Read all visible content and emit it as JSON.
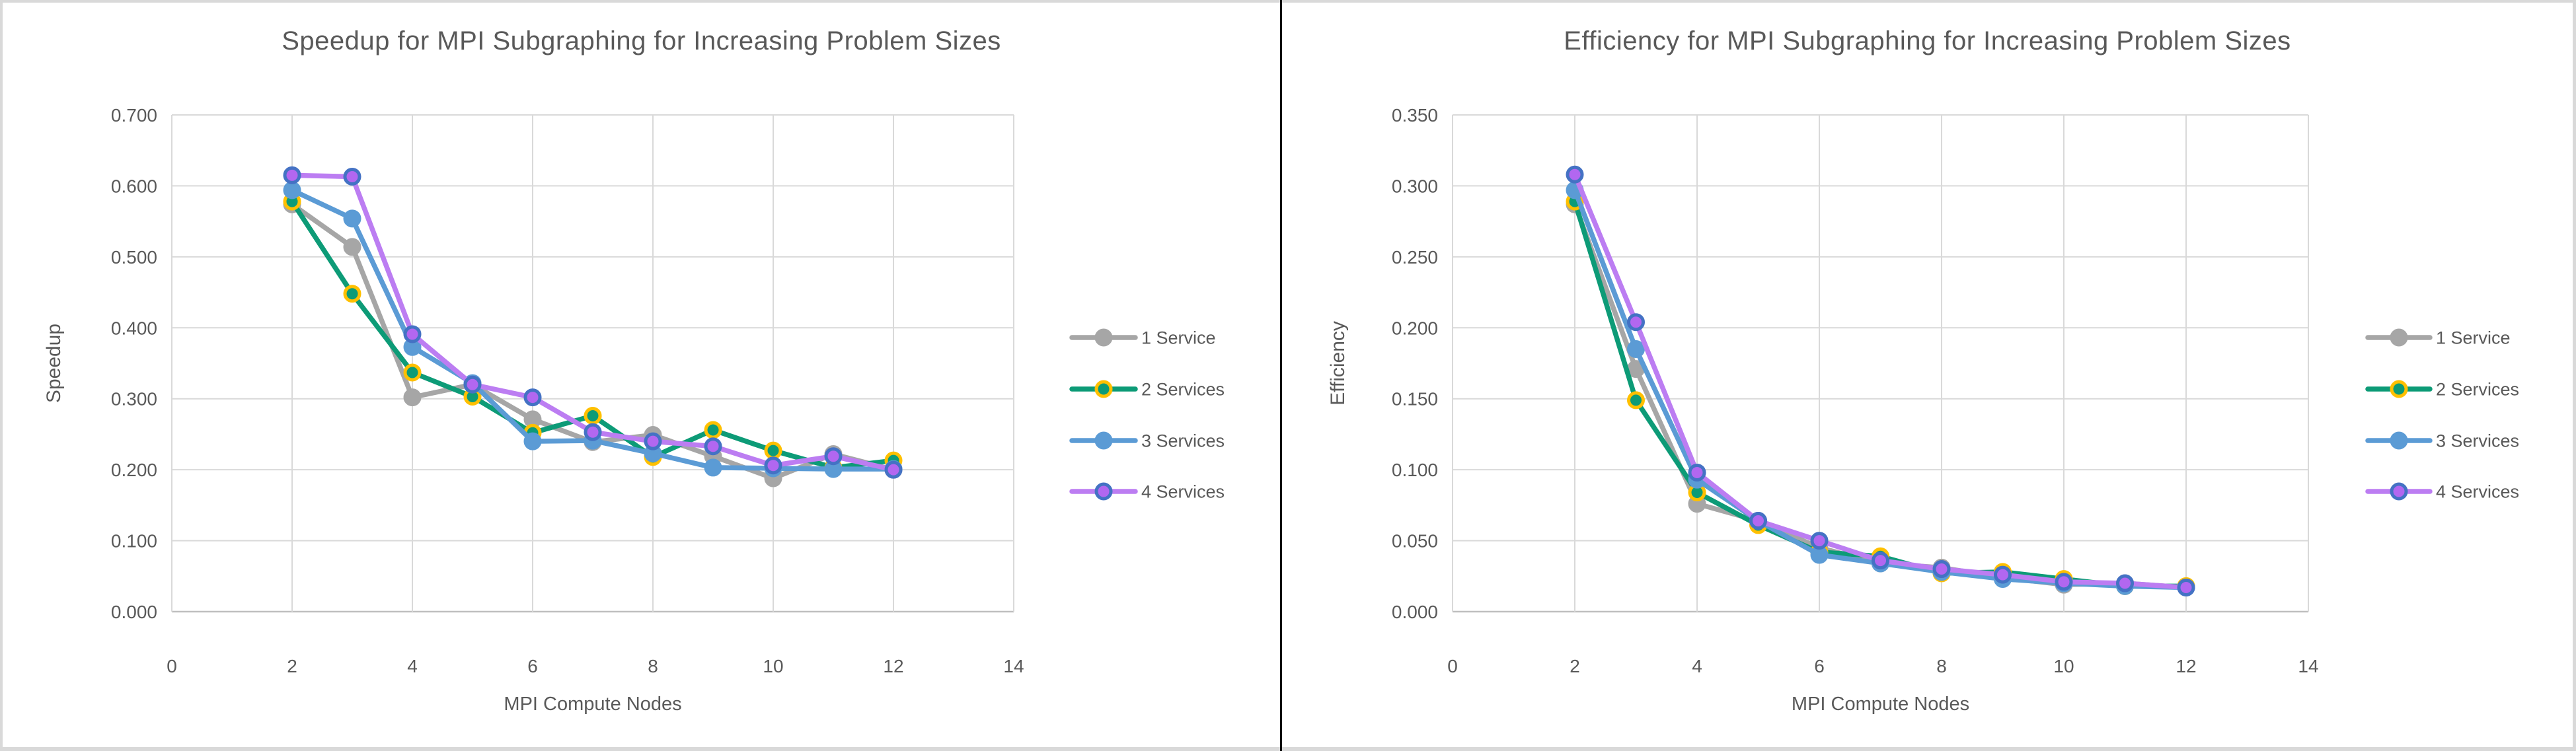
{
  "frame": {
    "background_strip_color": "#D9D9D9",
    "panel_divider_color": "#000000",
    "panel_background": "#FFFFFF",
    "gridline_color": "#D9D9D9",
    "axis_line_color": "#BFBFBF",
    "text_color": "#595959"
  },
  "chart_data": [
    {
      "type": "line",
      "title": "Speedup for MPI Subgraphing for Increasing Problem Sizes",
      "xlabel": "MPI Compute Nodes",
      "ylabel": "Speedup",
      "xlim": [
        0,
        14
      ],
      "ylim": [
        0.0,
        0.7
      ],
      "xticks": [
        0,
        2,
        4,
        6,
        8,
        10,
        12,
        14
      ],
      "ytick_labels": [
        "0.000",
        "0.100",
        "0.200",
        "0.300",
        "0.400",
        "0.500",
        "0.600",
        "0.700"
      ],
      "grid": true,
      "legend_position": "right",
      "x": [
        2,
        3,
        4,
        5,
        6,
        7,
        8,
        9,
        10,
        11,
        12
      ],
      "series": [
        {
          "name": "1 Service",
          "line_color": "#A6A6A6",
          "marker_fill": "#A6A6A6",
          "marker_edge": "#A6A6A6",
          "marker_edge_width": 3,
          "marker_radius": 12,
          "values": [
            0.574,
            0.514,
            0.302,
            0.32,
            0.271,
            0.239,
            0.249,
            0.219,
            0.188,
            0.222,
            0.2
          ]
        },
        {
          "name": "2 Services",
          "line_color": "#0D9B77",
          "marker_fill": "#0D9B77",
          "marker_edge": "#FFC000",
          "marker_edge_width": 5,
          "marker_radius": 11,
          "values": [
            0.578,
            0.448,
            0.337,
            0.303,
            0.252,
            0.276,
            0.218,
            0.256,
            0.227,
            0.203,
            0.213
          ]
        },
        {
          "name": "3 Services",
          "line_color": "#5B9BD5",
          "marker_fill": "#5B9BD5",
          "marker_edge": "#5B9BD5",
          "marker_edge_width": 3,
          "marker_radius": 12,
          "values": [
            0.594,
            0.554,
            0.373,
            0.322,
            0.24,
            0.241,
            0.223,
            0.203,
            0.202,
            0.201,
            0.201
          ]
        },
        {
          "name": "4 Services",
          "line_color": "#BC7DF2",
          "marker_fill": "#B267F0",
          "marker_edge": "#4472C4",
          "marker_edge_width": 5,
          "marker_radius": 11,
          "values": [
            0.615,
            0.613,
            0.391,
            0.32,
            0.302,
            0.253,
            0.24,
            0.233,
            0.206,
            0.219,
            0.2
          ]
        }
      ]
    },
    {
      "type": "line",
      "title": "Efficiency for MPI Subgraphing for Increasing Problem Sizes",
      "xlabel": "MPI Compute Nodes",
      "ylabel": "Efficiency",
      "xlim": [
        0,
        14
      ],
      "ylim": [
        0.0,
        0.35
      ],
      "xticks": [
        0,
        2,
        4,
        6,
        8,
        10,
        12,
        14
      ],
      "ytick_labels": [
        "0.000",
        "0.050",
        "0.100",
        "0.150",
        "0.200",
        "0.250",
        "0.300",
        "0.350"
      ],
      "grid": true,
      "legend_position": "right",
      "x": [
        2,
        3,
        4,
        5,
        6,
        7,
        8,
        9,
        10,
        11,
        12
      ],
      "series": [
        {
          "name": "1 Service",
          "line_color": "#A6A6A6",
          "marker_fill": "#A6A6A6",
          "marker_edge": "#A6A6A6",
          "marker_edge_width": 3,
          "marker_radius": 12,
          "values": [
            0.287,
            0.171,
            0.076,
            0.064,
            0.045,
            0.034,
            0.031,
            0.024,
            0.019,
            0.02,
            0.017
          ]
        },
        {
          "name": "2 Services",
          "line_color": "#0D9B77",
          "marker_fill": "#0D9B77",
          "marker_edge": "#FFC000",
          "marker_edge_width": 5,
          "marker_radius": 11,
          "values": [
            0.289,
            0.149,
            0.084,
            0.061,
            0.042,
            0.039,
            0.027,
            0.028,
            0.023,
            0.018,
            0.018
          ]
        },
        {
          "name": "3 Services",
          "line_color": "#5B9BD5",
          "marker_fill": "#5B9BD5",
          "marker_edge": "#5B9BD5",
          "marker_edge_width": 3,
          "marker_radius": 12,
          "values": [
            0.297,
            0.185,
            0.093,
            0.064,
            0.04,
            0.034,
            0.028,
            0.023,
            0.02,
            0.018,
            0.017
          ]
        },
        {
          "name": "4 Services",
          "line_color": "#BC7DF2",
          "marker_fill": "#B267F0",
          "marker_edge": "#4472C4",
          "marker_edge_width": 5,
          "marker_radius": 11,
          "values": [
            0.308,
            0.204,
            0.098,
            0.064,
            0.05,
            0.036,
            0.03,
            0.026,
            0.021,
            0.02,
            0.017
          ]
        }
      ]
    }
  ]
}
